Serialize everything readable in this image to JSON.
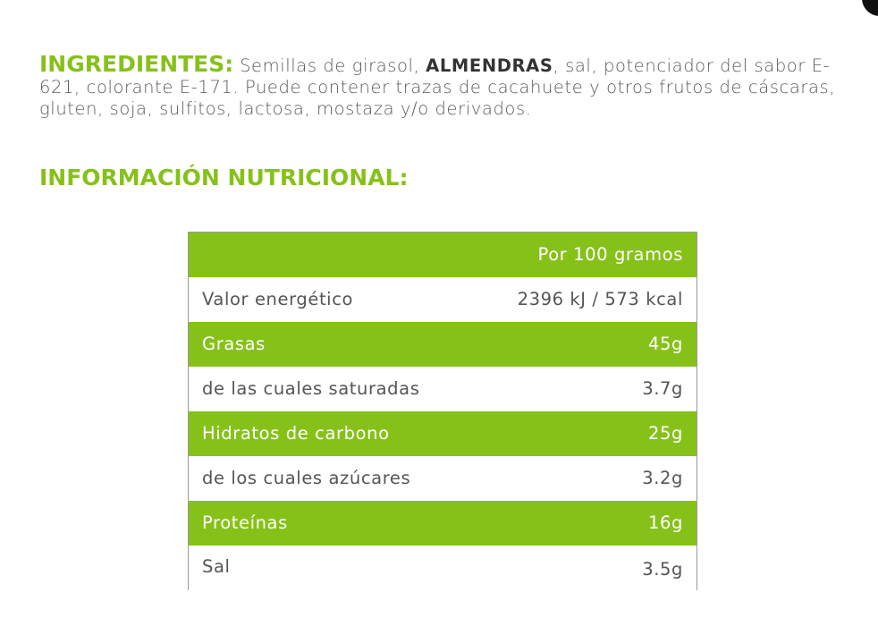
{
  "ingredients": {
    "label": "INGREDIENTES:",
    "text_before": " Semillas de girasol, ",
    "allergen": "ALMENDRAS",
    "text_after": ", sal, potenciador del sabor E-621, colorante E-171. Puede contener trazas de cacahuete y otros frutos de cáscaras, gluten, soja, sulfitos, lactosa, mostaza y/o derivados."
  },
  "nutrition": {
    "heading": "INFORMACIÓN NUTRICIONAL:",
    "header_label": "",
    "header_value": "Por 100 gramos",
    "rows": [
      {
        "label": "Valor energético",
        "value": "2396 kJ / 573 kcal",
        "style": "white"
      },
      {
        "label": "Grasas",
        "value": "45g",
        "style": "green"
      },
      {
        "label": "de las cuales saturadas",
        "value": "3.7g",
        "style": "white"
      },
      {
        "label": "Hidratos de carbono",
        "value": "25g",
        "style": "green"
      },
      {
        "label": "de los cuales azúcares",
        "value": "3.2g",
        "style": "white"
      },
      {
        "label": "Proteínas",
        "value": "16g",
        "style": "green"
      },
      {
        "label": "Sal",
        "value": "3.5g",
        "style": "white"
      }
    ]
  },
  "colors": {
    "accent_green": "#86c11a",
    "text_gray": "#555555",
    "border_gray": "#9a9a9a"
  }
}
